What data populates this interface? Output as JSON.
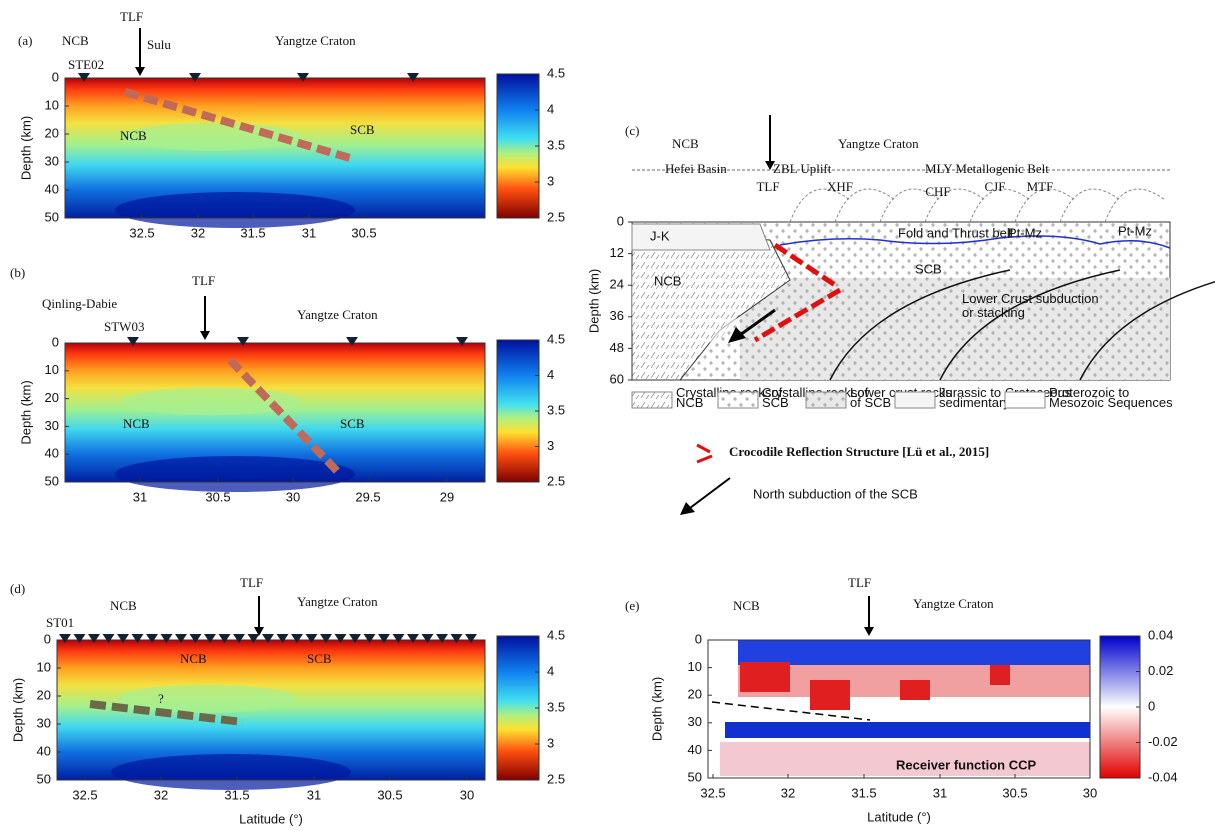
{
  "panel_a": {
    "label": "(a)",
    "block_left": "NCB",
    "fault": "TLF",
    "block_mid": "Sulu",
    "block_right": "Yangtze Craton",
    "station": "STE02",
    "region_left": "NCB",
    "region_right": "SCB",
    "y_label": "Depth (km)",
    "y_ticks": [
      0,
      10,
      20,
      30,
      40,
      50
    ],
    "x_ticks": [
      32.5,
      32,
      31.5,
      31,
      30.5
    ],
    "colorbar_ticks": [
      4.5,
      4,
      3.5,
      3,
      2.5
    ]
  },
  "panel_b": {
    "label": "(b)",
    "block_left": "Qinling-Dabie",
    "fault": "TLF",
    "block_right": "Yangtze Craton",
    "station": "STW03",
    "region_left": "NCB",
    "region_right": "SCB",
    "y_label": "Depth (km)",
    "y_ticks": [
      0,
      10,
      20,
      30,
      40,
      50
    ],
    "x_ticks": [
      31,
      30.5,
      30,
      29.5,
      29
    ],
    "colorbar_ticks": [
      4.5,
      4,
      3.5,
      3,
      2.5
    ]
  },
  "panel_c": {
    "label": "(c)",
    "block_left": "NCB",
    "block_right": "Yangtze Craton",
    "zone_left": "Hefei Basin",
    "zone_mid": "ZBL Uplift",
    "zone_right": "MLY Metallogenic Belt",
    "faults": [
      "TLF",
      "XHF",
      "CHF",
      "CJF",
      "MTF"
    ],
    "unit_jk": "J-K",
    "unit_ptmz": [
      "Pt-Mz",
      "Pt-Mz"
    ],
    "fold_belt": "Fold and Thrust belt",
    "region_scb": "SCB",
    "region_ncb": "NCB",
    "lower_crust": "Lower Crust subduction or stacking",
    "y_label": "Depth (km)",
    "y_ticks": [
      0,
      12,
      24,
      36,
      48,
      60
    ],
    "legend": [
      "Crystalline rocksof NCB",
      "Crystalline rocksof SCB",
      "Lower crust rocks of SCB",
      "Jurassic to Cretaceous sedimentary rock",
      "Proterozoic to Mesozoic Sequences"
    ],
    "crocodile": "Crocodile Reflection Structure [Lü et al., 2015]",
    "subduction": "North subduction of the SCB"
  },
  "panel_d": {
    "label": "(d)",
    "block_left": "NCB",
    "fault": "TLF",
    "block_right": "Yangtze Craton",
    "station": "ST01",
    "region_left": "NCB",
    "region_right": "SCB",
    "question": "?",
    "y_label": "Depth (km)",
    "x_label": "Latitude (°)",
    "y_ticks": [
      0,
      10,
      20,
      30,
      40,
      50
    ],
    "x_ticks": [
      32.5,
      32,
      31.5,
      31,
      30.5,
      30
    ],
    "colorbar_ticks": [
      4.5,
      4,
      3.5,
      3,
      2.5
    ]
  },
  "panel_e": {
    "label": "(e)",
    "block_left": "NCB",
    "fault": "TLF",
    "block_right": "Yangtze Craton",
    "caption": "Receiver function CCP",
    "y_label": "Depth (km)",
    "x_label": "Latitude (°)",
    "y_ticks": [
      0,
      10,
      20,
      30,
      40,
      50
    ],
    "x_ticks": [
      32.5,
      32,
      31.5,
      31,
      30.5,
      30
    ],
    "colorbar_ticks": [
      0.04,
      0.02,
      0,
      -0.02,
      -0.04
    ]
  }
}
